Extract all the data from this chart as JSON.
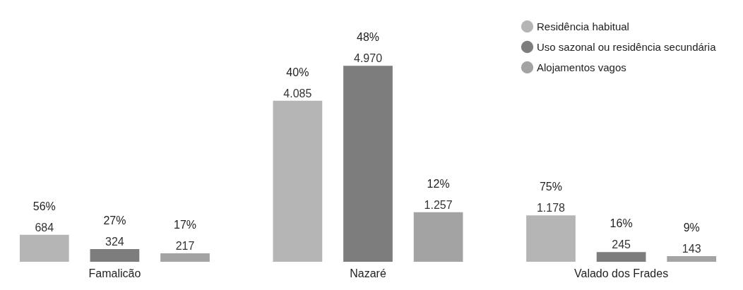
{
  "chart_data": {
    "type": "bar",
    "categories": [
      "Famalicão",
      "Nazaré",
      "Valado dos Frades"
    ],
    "series": [
      {
        "name": "Residência habitual",
        "color": "#b5b5b5",
        "values": [
          684,
          4085,
          1178
        ],
        "value_labels": [
          "684",
          "4.085",
          "1.178"
        ]
      },
      {
        "name": "Uso sazonal ou residência secundária",
        "color": "#7d7d7d",
        "values": [
          324,
          4970,
          245
        ],
        "value_labels": [
          "324",
          "4.970",
          "245"
        ]
      },
      {
        "name": "Alojamentos vagos",
        "color": "#a3a3a3",
        "values": [
          217,
          1257,
          143
        ],
        "value_labels": [
          "217",
          "1.257",
          "143"
        ]
      }
    ],
    "annotations": [
      "56%",
      "27%",
      "17%",
      "40%",
      "48%",
      "12%",
      "75%",
      "16%",
      "9%"
    ],
    "legend": "top right"
  }
}
